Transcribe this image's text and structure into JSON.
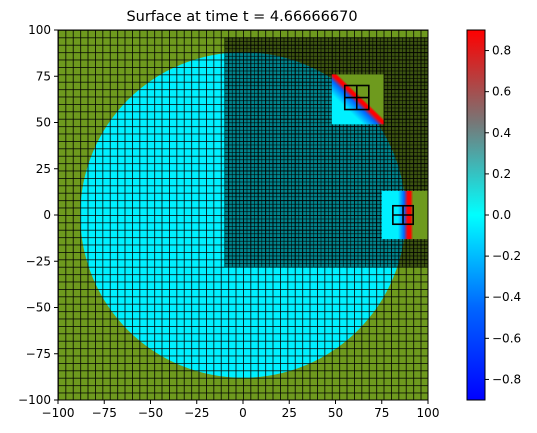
{
  "chart_data": {
    "type": "heatmap",
    "title": "Surface at time t =     4.66666670",
    "xlim": [
      -100,
      100
    ],
    "ylim": [
      -100,
      100
    ],
    "x_ticks": [
      -100,
      -75,
      -50,
      -25,
      0,
      25,
      50,
      75,
      100
    ],
    "y_ticks": [
      -100,
      -75,
      -50,
      -25,
      0,
      25,
      50,
      75,
      100
    ],
    "x_tick_labels": [
      "−100",
      "−75",
      "−50",
      "−25",
      "0",
      "25",
      "50",
      "75",
      "100"
    ],
    "y_tick_labels": [
      "−100",
      "−75",
      "−50",
      "−25",
      "0",
      "25",
      "50",
      "75",
      "100"
    ],
    "xlabel": "",
    "ylabel": "",
    "colorbar": {
      "vmin": -0.9,
      "vmax": 0.9,
      "ticks": [
        -0.8,
        -0.6,
        -0.4,
        -0.2,
        0.0,
        0.2,
        0.4,
        0.6,
        0.8
      ],
      "tick_labels": [
        "−0.8",
        "−0.6",
        "−0.4",
        "−0.2",
        "0.0",
        "0.2",
        "0.4",
        "0.6",
        "0.8"
      ],
      "colors": [
        "#0000ff",
        "#0066ff",
        "#00ffff",
        "#777777",
        "#ff0000"
      ]
    },
    "water_region": {
      "shape": "disk",
      "center": [
        0,
        0
      ],
      "radius": 88,
      "surface_value": 0.0
    },
    "land_color": "#6e9a1e",
    "water_color": "#00f0ff",
    "refined_patches": [
      {
        "xlim": [
          -10,
          100
        ],
        "ylim": [
          -28,
          96
        ]
      }
    ],
    "fine_patches": [
      {
        "xlim": [
          48,
          76
        ],
        "ylim": [
          49,
          76
        ],
        "front": "diagonal"
      },
      {
        "xlim": [
          75,
          100
        ],
        "ylim": [
          -13,
          13
        ],
        "front": "vertical"
      }
    ],
    "grid_boxes": [
      {
        "xlim": [
          55,
          68
        ],
        "ylim": [
          57,
          70
        ]
      },
      {
        "xlim": [
          81,
          92
        ],
        "ylim": [
          -5,
          5
        ]
      }
    ]
  }
}
